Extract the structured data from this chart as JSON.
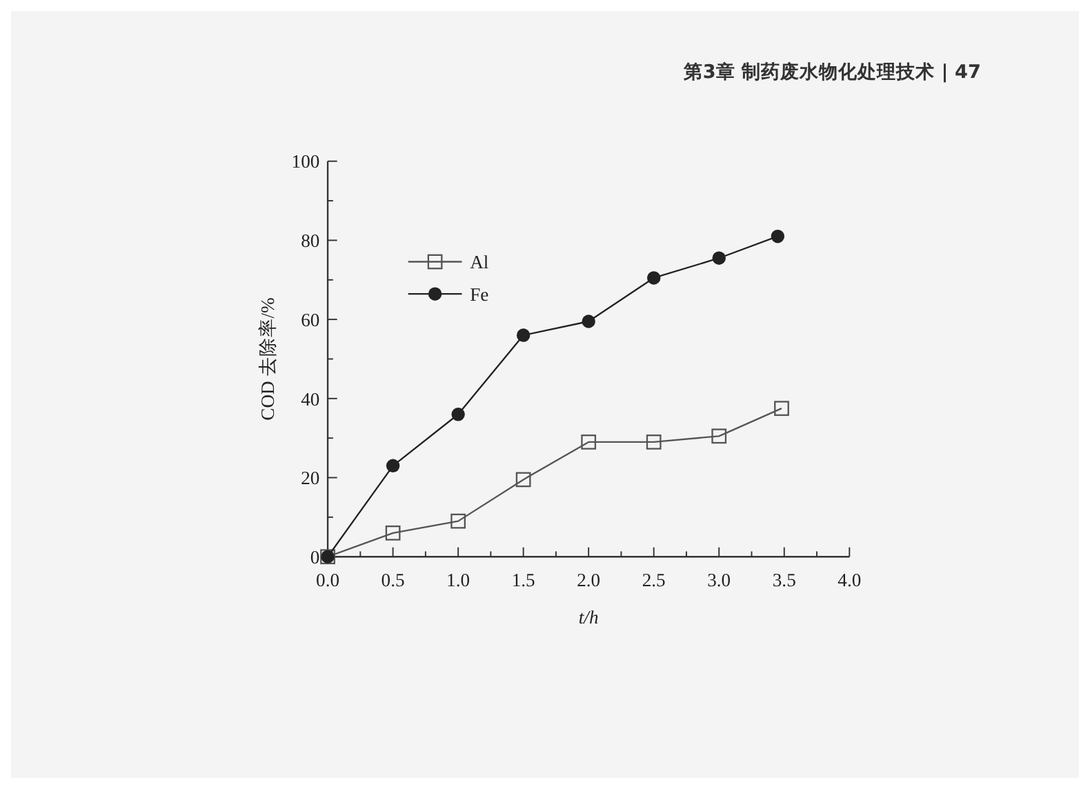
{
  "chart_data": {
    "type": "line",
    "xlabel": "t/h",
    "ylabel": "COD 去除率/%",
    "annotations": [
      "第3章  制药废水物化处理技术 | 47"
    ],
    "xlim": [
      0,
      4
    ],
    "ylim": [
      0,
      100
    ],
    "xticks": [
      {
        "value": 0,
        "label": "0.0"
      },
      {
        "value": 0.25,
        "label": null
      },
      {
        "value": 0.5,
        "label": "0.5"
      },
      {
        "value": 0.75,
        "label": null
      },
      {
        "value": 1,
        "label": "1.0"
      },
      {
        "value": 1.25,
        "label": null
      },
      {
        "value": 1.5,
        "label": "1.5"
      },
      {
        "value": 1.75,
        "label": null
      },
      {
        "value": 2,
        "label": "2.0"
      },
      {
        "value": 2.25,
        "label": null
      },
      {
        "value": 2.5,
        "label": "2.5"
      },
      {
        "value": 2.75,
        "label": null
      },
      {
        "value": 3,
        "label": "3.0"
      },
      {
        "value": 3.25,
        "label": null
      },
      {
        "value": 3.5,
        "label": "3.5"
      },
      {
        "value": 3.75,
        "label": null
      },
      {
        "value": 4,
        "label": "4.0"
      }
    ],
    "yticks": [
      0,
      {
        "value": 10,
        "label": null
      },
      20,
      {
        "value": 30,
        "label": null
      },
      40,
      {
        "value": 50,
        "label": null
      },
      60,
      {
        "value": 70,
        "label": null
      },
      80,
      {
        "value": 90,
        "label": null
      },
      100
    ],
    "grid": false,
    "legend": "top left",
    "line_style": "solid",
    "series": [
      {
        "name": "Al",
        "color": "#555555",
        "marker": "square",
        "x": [
          0,
          0.5,
          1,
          1.5,
          2,
          2.5,
          3,
          3.48
        ],
        "values": [
          0,
          6,
          9,
          19.5,
          29,
          29,
          30.5,
          37.5
        ]
      },
      {
        "name": "Fe",
        "color": "#222222",
        "marker": "circle",
        "x": [
          0,
          0.5,
          1,
          1.5,
          2,
          2.5,
          3,
          3.45
        ],
        "values": [
          0,
          23,
          36,
          56,
          59.5,
          70.5,
          75.5,
          81
        ]
      }
    ]
  }
}
